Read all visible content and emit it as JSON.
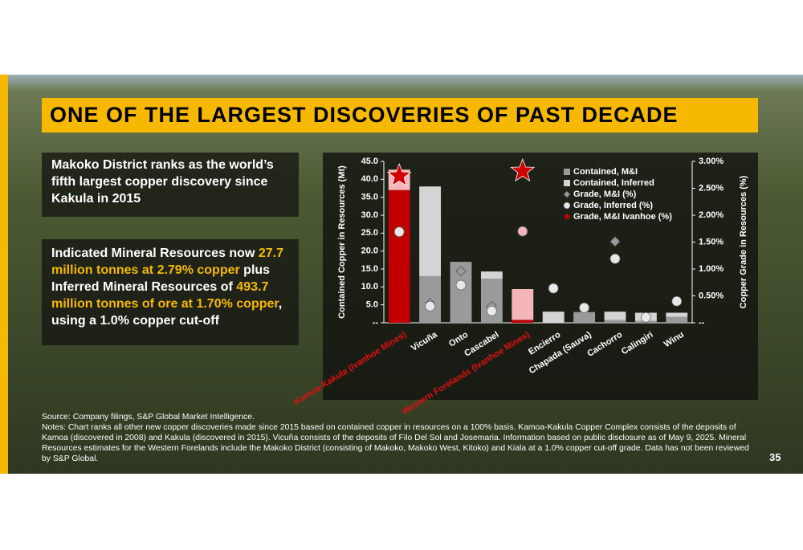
{
  "slide": {
    "title": "ONE OF THE LARGEST DISCOVERIES OF PAST DECADE",
    "summary": "Makoko District ranks as the world’s fifth largest copper discovery since Kakula in 2015",
    "resource_text": [
      "Indicated Mineral Resources now ",
      "27.7 million tonnes at 2.79% copper",
      " plus Inferred Mineral Resources of ",
      "493.7 million tonnes of ore at 1.70% copper",
      ", using a 1.0% copper cut-off"
    ],
    "source": "Source: Company filings, S&P Global Market Intelligence.",
    "notes": "Notes: Chart ranks all other new copper discoveries made since 2015 based on contained copper in resources on a 100% basis. Kamoa-Kakula Copper Complex consists of the deposits of Kamoa (discovered in 2008) and Kakula (discovered in 2015). Vicuña consists of the deposits of Filo Del Sol and Josemaria. Information based on public disclosure as of May 9, 2025. Mineral Resources estimates for the Western Forelands include the Makoko District (consisting of Makoko, Makoko West, Kitoko) and Kiala at a 1.0% copper cut-off grade. Data has not been reviewed by S&P Global.",
    "page_number": 35
  },
  "chart_data": {
    "type": "bar",
    "stacked": true,
    "ylabel": "Contained Copper in Resources (Mt)",
    "y2label": "Copper Grade in Resources (%)",
    "categories": [
      "Kamoa-Kakula (Ivanhoe Mines)",
      "Vicuña",
      "Onto",
      "Cascabel",
      "Western Forelands (Ivanhoe Mines)",
      "Encierro",
      "Chapada (Sauva)",
      "Cachorro",
      "Calingiri",
      "Winu"
    ],
    "category_label_colors": [
      "#e01010",
      "#ffffff",
      "#ffffff",
      "#ffffff",
      "#e01010",
      "#ffffff",
      "#ffffff",
      "#ffffff",
      "#ffffff",
      "#ffffff"
    ],
    "series": [
      {
        "name": "Contained, M&I",
        "type": "bar",
        "color": "#9a9a9a",
        "colors": [
          "#c00000",
          "#9a9a9a",
          "#9a9a9a",
          "#9a9a9a",
          "#c00000",
          "#9a9a9a",
          "#9a9a9a",
          "#9a9a9a",
          "#9a9a9a",
          "#9a9a9a"
        ],
        "values": [
          37.0,
          13.0,
          17.0,
          12.3,
          0.8,
          null,
          3.0,
          0.8,
          0.5,
          1.6
        ]
      },
      {
        "name": "Contained, Inferred",
        "type": "bar",
        "color": "#d4d4d4",
        "colors": [
          "#f4b6b9",
          "#d4d4d4",
          "#d4d4d4",
          "#d4d4d4",
          "#f4b6b9",
          "#d4d4d4",
          "#d4d4d4",
          "#d4d4d4",
          "#d4d4d4",
          "#d4d4d4"
        ],
        "values": [
          5.7,
          25.0,
          null,
          2.0,
          8.6,
          3.1,
          null,
          2.3,
          2.3,
          1.2
        ]
      },
      {
        "name": "Grade, M&I (%)",
        "type": "scatter",
        "marker": "diamond",
        "axis": "y2",
        "color": "#9a9a9a",
        "values": [
          null,
          0.36,
          0.96,
          0.31,
          null,
          null,
          null,
          1.51,
          null,
          null
        ]
      },
      {
        "name": "Grade, Inferred (%)",
        "type": "scatter",
        "marker": "circle",
        "axis": "y2",
        "color": "#e8e8e8",
        "colors": [
          "#e8e8e8",
          "#e8e8e8",
          "#e8e8e8",
          "#e8e8e8",
          "#f4b6b9",
          "#e8e8e8",
          "#e8e8e8",
          "#e8e8e8",
          "#e8e8e8",
          "#e8e8e8"
        ],
        "values": [
          1.69,
          0.31,
          0.7,
          0.22,
          1.7,
          0.64,
          0.28,
          1.19,
          0.1,
          0.4
        ]
      },
      {
        "name": "Grade, M&I Ivanhoe (%)",
        "type": "scatter",
        "marker": "star",
        "axis": "y2",
        "color": "#d00000",
        "values": [
          2.73,
          null,
          null,
          null,
          2.82,
          null,
          null,
          null,
          null,
          null
        ]
      }
    ],
    "ylim": [
      0,
      45
    ],
    "yticks": [
      {
        "value": 0,
        "label": "--"
      },
      {
        "value": 5,
        "label": "5.0"
      },
      {
        "value": 10,
        "label": "10.0"
      },
      {
        "value": 15,
        "label": "15.0"
      },
      {
        "value": 20,
        "label": "20.0"
      },
      {
        "value": 25,
        "label": "25.0"
      },
      {
        "value": 30,
        "label": "30.0"
      },
      {
        "value": 35,
        "label": "35.0"
      },
      {
        "value": 40,
        "label": "40.0"
      },
      {
        "value": 45,
        "label": "45.0"
      }
    ],
    "y2lim": [
      0,
      3
    ],
    "y2ticks": [
      {
        "value": 0,
        "label": "--"
      },
      {
        "value": 0.5,
        "label": "0.50%"
      },
      {
        "value": 1,
        "label": "1.00%"
      },
      {
        "value": 1.5,
        "label": "1.50%"
      },
      {
        "value": 2,
        "label": "2.00%"
      },
      {
        "value": 2.5,
        "label": "2.50%"
      },
      {
        "value": 3,
        "label": "3.00%"
      }
    ],
    "legend": "upper right",
    "grid": false
  }
}
